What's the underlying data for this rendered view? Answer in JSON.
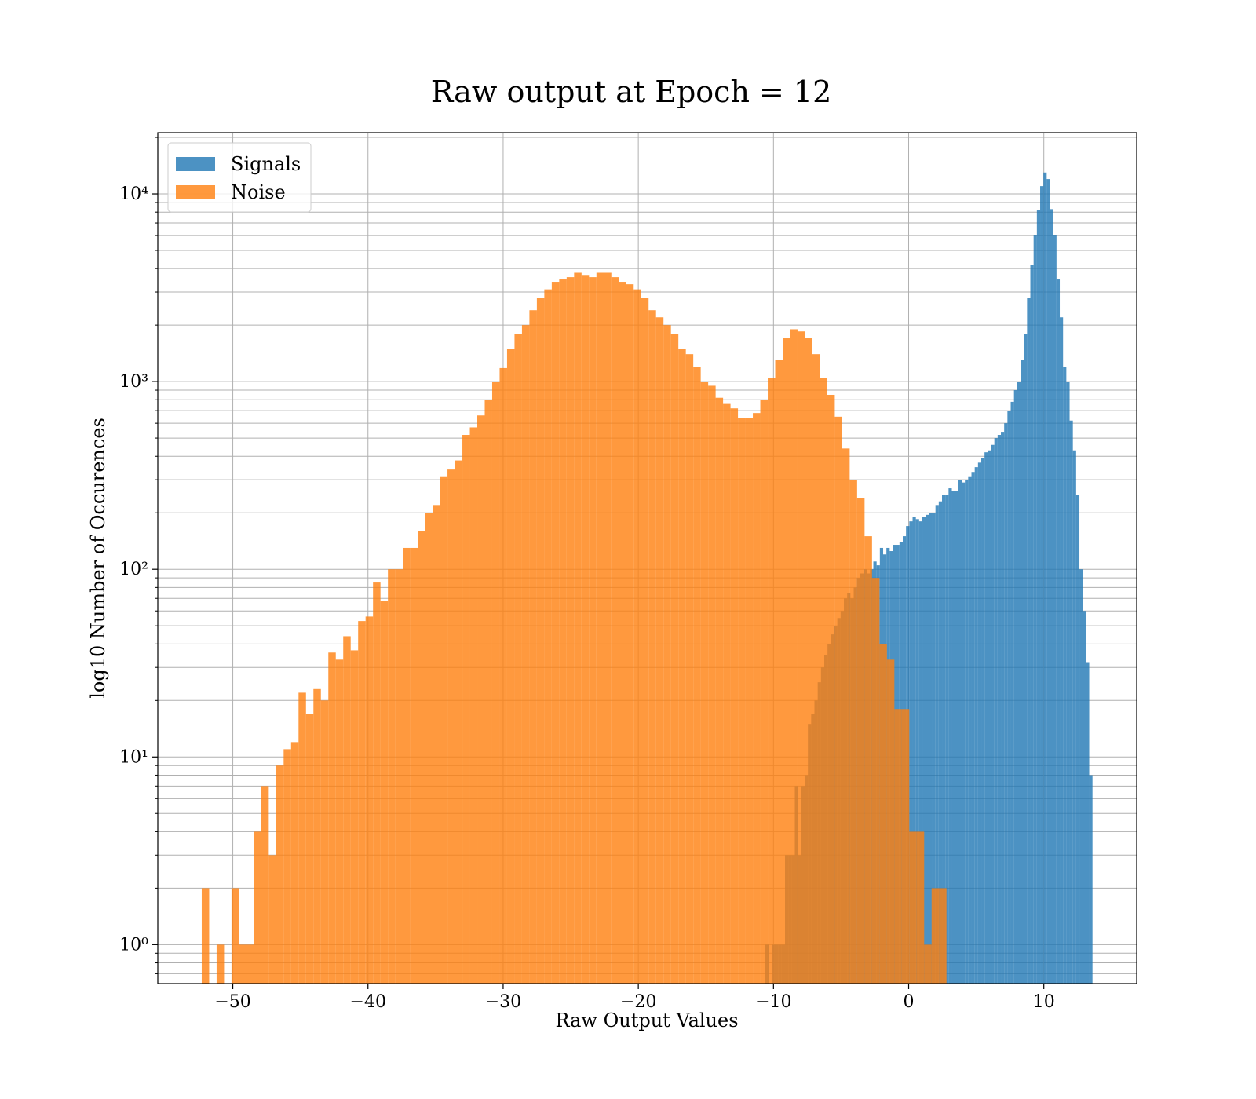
{
  "chart_data": {
    "type": "histogram",
    "title": "Raw output at Epoch = 12",
    "xlabel": "Raw Output Values",
    "ylabel": "log10 Number of Occurences",
    "yscale": "log",
    "grid": true,
    "legend": "upper left",
    "alpha": 0.8,
    "xlim": [
      -55.55,
      16.87
    ],
    "ylim": [
      0.62,
      21200
    ],
    "xticks": [
      {
        "value": -50,
        "label": "−50"
      },
      {
        "value": -40,
        "label": "−40"
      },
      {
        "value": -30,
        "label": "−30"
      },
      {
        "value": -20,
        "label": "−20"
      },
      {
        "value": -10,
        "label": "−10"
      },
      0,
      10
    ],
    "yticks": [
      {
        "value": 1,
        "label": "10⁰"
      },
      {
        "value": 10,
        "label": "10¹"
      },
      {
        "value": 100,
        "label": "10²"
      },
      {
        "value": 1000,
        "label": "10³"
      },
      {
        "value": 10000,
        "label": "10⁴"
      }
    ],
    "yminorticks": [
      0.7,
      0.8,
      0.9,
      2,
      3,
      4,
      5,
      6,
      7,
      8,
      9,
      20,
      30,
      40,
      50,
      60,
      70,
      80,
      90,
      200,
      300,
      400,
      500,
      600,
      700,
      800,
      900,
      2000,
      3000,
      4000,
      5000,
      6000,
      7000,
      8000,
      9000,
      20000
    ],
    "series": [
      {
        "name": "Signals",
        "color": "#1f77b4",
        "bins": [
          -10.6,
          -10.358,
          -10.116,
          -9.874,
          -9.632,
          -9.39,
          -9.148,
          -8.906,
          -8.664,
          -8.422,
          -8.18,
          -7.938,
          -7.696,
          -7.454,
          -7.212,
          -6.97,
          -6.728,
          -6.486,
          -6.244,
          -6.002,
          -5.76,
          -5.518,
          -5.276,
          -5.034,
          -4.792,
          -4.55,
          -4.308,
          -4.066,
          -3.824,
          -3.582,
          -3.34,
          -3.098,
          -2.856,
          -2.614,
          -2.372,
          -2.13,
          -1.888,
          -1.646,
          -1.404,
          -1.162,
          -0.92,
          -0.678,
          -0.436,
          -0.194,
          0.048,
          0.29,
          0.532,
          0.774,
          1.016,
          1.258,
          1.5,
          1.742,
          1.984,
          2.226,
          2.468,
          2.71,
          2.952,
          3.194,
          3.436,
          3.678,
          3.92,
          4.162,
          4.404,
          4.646,
          4.888,
          5.13,
          5.372,
          5.614,
          5.856,
          6.098,
          6.34,
          6.582,
          6.824,
          7.066,
          7.308,
          7.55,
          7.792,
          8.034,
          8.276,
          8.518,
          8.76,
          9.002,
          9.244,
          9.486,
          9.728,
          9.97,
          10.212,
          10.454,
          10.696,
          10.938,
          11.18,
          11.422,
          11.664,
          11.906,
          12.148,
          12.39,
          12.632,
          12.874,
          13.116,
          13.358,
          13.6
        ],
        "values": [
          1,
          0,
          1,
          1,
          1,
          1,
          3,
          3,
          3,
          7,
          3,
          7,
          8,
          15,
          17,
          20,
          25,
          30,
          35,
          40,
          45,
          50,
          55,
          60,
          70,
          75,
          70,
          80,
          90,
          95,
          100,
          95,
          100,
          110,
          105,
          130,
          120,
          130,
          125,
          135,
          135,
          140,
          150,
          170,
          180,
          190,
          185,
          180,
          190,
          195,
          200,
          200,
          220,
          230,
          250,
          250,
          270,
          260,
          260,
          300,
          290,
          300,
          310,
          330,
          350,
          370,
          390,
          420,
          430,
          460,
          500,
          520,
          540,
          600,
          700,
          780,
          900,
          1000,
          1300,
          1800,
          2800,
          4200,
          6000,
          8200,
          11000,
          13000,
          12000,
          8300,
          6000,
          3500,
          2200,
          1200,
          1000,
          620,
          430,
          250,
          100,
          60,
          32,
          8
        ]
      },
      {
        "name": "Noise",
        "color": "#ff7f0e",
        "bins": [
          -52.3,
          -51.749,
          -51.198,
          -50.647,
          -50.096,
          -49.545,
          -48.994,
          -48.443,
          -47.892,
          -47.341,
          -46.79,
          -46.239,
          -45.688,
          -45.137,
          -44.586,
          -44.035,
          -43.484,
          -42.933,
          -42.382,
          -41.831,
          -41.28,
          -40.729,
          -40.178,
          -39.627,
          -39.076,
          -38.525,
          -37.974,
          -37.423,
          -36.872,
          -36.321,
          -35.77,
          -35.219,
          -34.668,
          -34.117,
          -33.566,
          -33.015,
          -32.464,
          -31.913,
          -31.362,
          -30.811,
          -30.26,
          -29.709,
          -29.158,
          -28.607,
          -28.056,
          -27.505,
          -26.954,
          -26.403,
          -25.852,
          -25.301,
          -24.75,
          -24.199,
          -23.648,
          -23.097,
          -22.546,
          -21.995,
          -21.444,
          -20.893,
          -20.342,
          -19.791,
          -19.24,
          -18.689,
          -18.138,
          -17.587,
          -17.036,
          -16.485,
          -15.934,
          -15.383,
          -14.832,
          -14.281,
          -13.73,
          -13.179,
          -12.628,
          -12.077,
          -11.526,
          -10.975,
          -10.424,
          -9.873,
          -9.322,
          -8.771,
          -8.22,
          -7.669,
          -7.118,
          -6.567,
          -6.016,
          -5.465,
          -4.914,
          -4.363,
          -3.812,
          -3.261,
          -2.71,
          -2.159,
          -1.608,
          -1.057,
          -0.506,
          0.045,
          0.596,
          1.147,
          1.698,
          2.249,
          2.8
        ],
        "values": [
          2,
          0,
          1,
          0,
          2,
          1,
          1,
          4,
          7,
          3,
          9,
          11,
          12,
          22,
          17,
          23,
          20,
          36,
          33,
          44,
          37,
          53,
          56,
          85,
          68,
          100,
          100,
          130,
          130,
          160,
          200,
          220,
          310,
          340,
          380,
          520,
          570,
          660,
          800,
          1000,
          1180,
          1500,
          1800,
          2000,
          2400,
          2800,
          3100,
          3400,
          3500,
          3600,
          3800,
          3700,
          3600,
          3800,
          3800,
          3600,
          3400,
          3300,
          3100,
          2800,
          2400,
          2200,
          2000,
          1800,
          1500,
          1400,
          1200,
          1000,
          950,
          820,
          760,
          720,
          640,
          640,
          680,
          800,
          1050,
          1300,
          1700,
          1900,
          1850,
          1700,
          1400,
          1050,
          850,
          650,
          440,
          300,
          240,
          150,
          90,
          40,
          33,
          18,
          18,
          4,
          4,
          1,
          2,
          2
        ]
      }
    ]
  }
}
